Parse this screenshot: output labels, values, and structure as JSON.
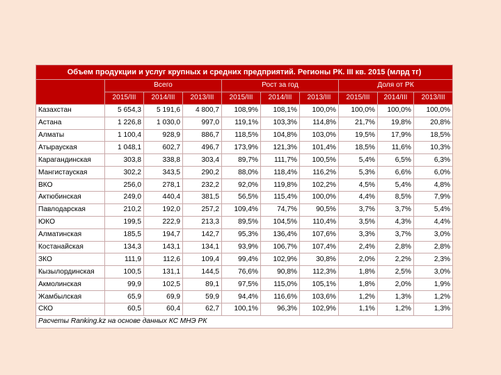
{
  "table": {
    "title": "Объем продукции и услуг крупных и средних предприятий. Регионы РК. III кв. 2015 (млрд тг)",
    "groups": [
      "Всего",
      "Рост за год",
      "Доля от РК"
    ],
    "periods": [
      "2015/III",
      "2014/III",
      "2013/III",
      "2015/III",
      "2014/III",
      "2013/III",
      "2015/III",
      "2014/III",
      "2013/III"
    ],
    "rows": [
      {
        "region": "Казахстан",
        "values": [
          "5 654,3",
          "5 191,6",
          "4 800,7",
          "108,9%",
          "108,1%",
          "100,0%",
          "100,0%",
          "100,0%",
          "100,0%"
        ]
      },
      {
        "region": "Астана",
        "values": [
          "1 226,8",
          "1 030,0",
          "997,0",
          "119,1%",
          "103,3%",
          "114,8%",
          "21,7%",
          "19,8%",
          "20,8%"
        ]
      },
      {
        "region": "Алматы",
        "values": [
          "1 100,4",
          "928,9",
          "886,7",
          "118,5%",
          "104,8%",
          "103,0%",
          "19,5%",
          "17,9%",
          "18,5%"
        ]
      },
      {
        "region": "Атырауская",
        "values": [
          "1 048,1",
          "602,7",
          "496,7",
          "173,9%",
          "121,3%",
          "101,4%",
          "18,5%",
          "11,6%",
          "10,3%"
        ]
      },
      {
        "region": "Карагандинская",
        "values": [
          "303,8",
          "338,8",
          "303,4",
          "89,7%",
          "111,7%",
          "100,5%",
          "5,4%",
          "6,5%",
          "6,3%"
        ]
      },
      {
        "region": "Мангистауская",
        "values": [
          "302,2",
          "343,5",
          "290,2",
          "88,0%",
          "118,4%",
          "116,2%",
          "5,3%",
          "6,6%",
          "6,0%"
        ]
      },
      {
        "region": "ВКО",
        "values": [
          "256,0",
          "278,1",
          "232,2",
          "92,0%",
          "119,8%",
          "102,2%",
          "4,5%",
          "5,4%",
          "4,8%"
        ]
      },
      {
        "region": "Актюбинская",
        "values": [
          "249,0",
          "440,4",
          "381,5",
          "56,5%",
          "115,4%",
          "100,0%",
          "4,4%",
          "8,5%",
          "7,9%"
        ]
      },
      {
        "region": "Павлодарская",
        "values": [
          "210,2",
          "192,0",
          "257,2",
          "109,4%",
          "74,7%",
          "90,5%",
          "3,7%",
          "3,7%",
          "5,4%"
        ]
      },
      {
        "region": "ЮКО",
        "values": [
          "199,5",
          "222,9",
          "213,3",
          "89,5%",
          "104,5%",
          "110,4%",
          "3,5%",
          "4,3%",
          "4,4%"
        ]
      },
      {
        "region": "Алматинская",
        "values": [
          "185,5",
          "194,7",
          "142,7",
          "95,3%",
          "136,4%",
          "107,6%",
          "3,3%",
          "3,7%",
          "3,0%"
        ]
      },
      {
        "region": "Костанайская",
        "values": [
          "134,3",
          "143,1",
          "134,1",
          "93,9%",
          "106,7%",
          "107,4%",
          "2,4%",
          "2,8%",
          "2,8%"
        ]
      },
      {
        "region": "ЗКО",
        "values": [
          "111,9",
          "112,6",
          "109,4",
          "99,4%",
          "102,9%",
          "30,8%",
          "2,0%",
          "2,2%",
          "2,3%"
        ]
      },
      {
        "region": "Кызылординская",
        "values": [
          "100,5",
          "131,1",
          "144,5",
          "76,6%",
          "90,8%",
          "112,3%",
          "1,8%",
          "2,5%",
          "3,0%"
        ]
      },
      {
        "region": "Акмолинская",
        "values": [
          "99,9",
          "102,5",
          "89,1",
          "97,5%",
          "115,0%",
          "105,1%",
          "1,8%",
          "2,0%",
          "1,9%"
        ]
      },
      {
        "region": "Жамбылская",
        "values": [
          "65,9",
          "69,9",
          "59,9",
          "94,4%",
          "116,6%",
          "103,6%",
          "1,2%",
          "1,3%",
          "1,2%"
        ]
      },
      {
        "region": "СКО",
        "values": [
          "60,5",
          "60,4",
          "62,7",
          "100,1%",
          "96,3%",
          "102,9%",
          "1,1%",
          "1,2%",
          "1,3%"
        ]
      }
    ],
    "source": "Расчеты Ranking.kz на основе данных КС МНЭ РК"
  },
  "colors": {
    "header_bg": "#c00000",
    "page_bg": "#fbe5d6",
    "grid": "#c9a9a9"
  }
}
